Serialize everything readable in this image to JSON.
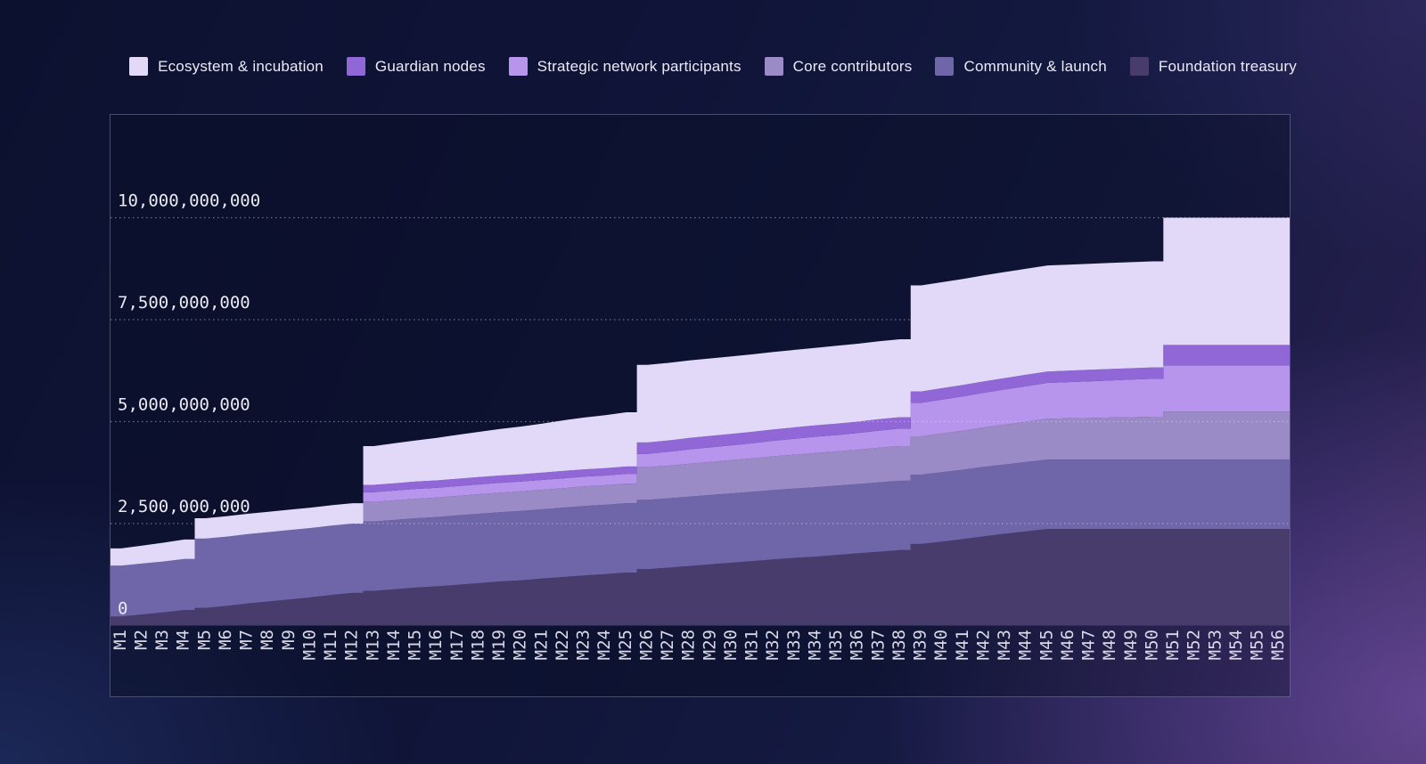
{
  "chart_data": {
    "type": "area",
    "stacked": true,
    "title": "",
    "xlabel": "",
    "ylabel": "",
    "grid": "dotted-horizontal",
    "legend_position": "top-center",
    "values_unit": "billions of tokens",
    "ylim_billions": [
      0,
      12.5
    ],
    "cliff_months": [
      5,
      13,
      26,
      39,
      51
    ],
    "x_categories": [
      "M1",
      "M2",
      "M3",
      "M4",
      "M5",
      "M6",
      "M7",
      "M8",
      "M9",
      "M10",
      "M11",
      "M12",
      "M13",
      "M14",
      "M15",
      "M16",
      "M17",
      "M18",
      "M19",
      "M20",
      "M21",
      "M22",
      "M23",
      "M24",
      "M25",
      "M26",
      "M27",
      "M28",
      "M29",
      "M30",
      "M31",
      "M32",
      "M33",
      "M34",
      "M35",
      "M36",
      "M37",
      "M38",
      "M39",
      "M40",
      "M41",
      "M42",
      "M43",
      "M44",
      "M45",
      "M46",
      "M47",
      "M48",
      "M49",
      "M50",
      "M51",
      "M52",
      "M53",
      "M54",
      "M55",
      "M56"
    ],
    "y_ticks": [
      {
        "value": 0,
        "label": "0",
        "line": false
      },
      {
        "value": 2.5,
        "label": "2,500,000,000",
        "line": true
      },
      {
        "value": 5,
        "label": "5,000,000,000",
        "line": true
      },
      {
        "value": 7.5,
        "label": "7,500,000,000",
        "line": true
      },
      {
        "value": 10,
        "label": "10,000,000,000",
        "line": true
      }
    ],
    "series": [
      {
        "name": "Ecosystem & incubation",
        "color": "#e1d9f7",
        "values": [
          0.42,
          0.44,
          0.46,
          0.48,
          0.5,
          0.5,
          0.5,
          0.5,
          0.5,
          0.5,
          0.5,
          0.5,
          0.95,
          0.98,
          1.01,
          1.04,
          1.08,
          1.11,
          1.14,
          1.17,
          1.2,
          1.24,
          1.27,
          1.3,
          1.33,
          1.9,
          1.9,
          1.9,
          1.9,
          1.9,
          1.9,
          1.9,
          1.9,
          1.9,
          1.91,
          1.91,
          1.91,
          1.91,
          2.6,
          2.6,
          2.6,
          2.6,
          2.6,
          2.6,
          2.6,
          2.6,
          2.6,
          2.6,
          2.6,
          2.6,
          3.12,
          3.12,
          3.12,
          3.12,
          3.12,
          3.12
        ]
      },
      {
        "name": "Guardian nodes",
        "color": "#9166d6",
        "values": [
          0,
          0,
          0,
          0,
          0,
          0,
          0,
          0,
          0,
          0,
          0,
          0,
          0.18,
          0.18,
          0.18,
          0.18,
          0.18,
          0.18,
          0.18,
          0.18,
          0.18,
          0.18,
          0.18,
          0.18,
          0.18,
          0.28,
          0.28,
          0.28,
          0.28,
          0.28,
          0.28,
          0.28,
          0.28,
          0.28,
          0.28,
          0.28,
          0.28,
          0.28,
          0.28,
          0.28,
          0.28,
          0.28,
          0.28,
          0.28,
          0.28,
          0.28,
          0.28,
          0.28,
          0.28,
          0.28,
          0.5,
          0.5,
          0.5,
          0.5,
          0.5,
          0.5
        ]
      },
      {
        "name": "Strategic network participants",
        "color": "#b795ec",
        "values": [
          0,
          0,
          0,
          0,
          0,
          0,
          0,
          0,
          0,
          0,
          0,
          0,
          0.24,
          0.24,
          0.24,
          0.24,
          0.24,
          0.24,
          0.24,
          0.24,
          0.24,
          0.24,
          0.24,
          0.24,
          0.24,
          0.33,
          0.34,
          0.35,
          0.36,
          0.36,
          0.37,
          0.38,
          0.39,
          0.4,
          0.4,
          0.41,
          0.42,
          0.43,
          0.82,
          0.83,
          0.84,
          0.85,
          0.86,
          0.87,
          0.88,
          0.89,
          0.9,
          0.91,
          0.92,
          0.93,
          1.13,
          1.13,
          1.13,
          1.13,
          1.13,
          1.13
        ]
      },
      {
        "name": "Core contributors",
        "color": "#9a8ac6",
        "values": [
          0,
          0,
          0,
          0,
          0,
          0,
          0,
          0,
          0,
          0,
          0,
          0,
          0.48,
          0.48,
          0.48,
          0.48,
          0.48,
          0.48,
          0.48,
          0.48,
          0.48,
          0.48,
          0.48,
          0.48,
          0.48,
          0.8,
          0.8,
          0.81,
          0.81,
          0.82,
          0.82,
          0.83,
          0.83,
          0.84,
          0.84,
          0.84,
          0.85,
          0.85,
          0.94,
          0.95,
          0.96,
          0.97,
          0.98,
          0.99,
          1.0,
          1.01,
          1.02,
          1.03,
          1.04,
          1.05,
          1.18,
          1.18,
          1.18,
          1.18,
          1.18,
          1.18
        ]
      },
      {
        "name": "Community & launch",
        "color": "#6f65a9",
        "values": [
          1.25,
          1.25,
          1.25,
          1.25,
          1.7,
          1.7,
          1.7,
          1.7,
          1.7,
          1.7,
          1.7,
          1.7,
          1.7,
          1.7,
          1.7,
          1.7,
          1.7,
          1.7,
          1.7,
          1.7,
          1.7,
          1.7,
          1.7,
          1.7,
          1.7,
          1.7,
          1.7,
          1.7,
          1.7,
          1.7,
          1.7,
          1.7,
          1.7,
          1.7,
          1.7,
          1.7,
          1.7,
          1.7,
          1.7,
          1.7,
          1.7,
          1.7,
          1.7,
          1.7,
          1.7,
          1.7,
          1.7,
          1.7,
          1.7,
          1.7,
          1.7,
          1.7,
          1.7,
          1.7,
          1.7,
          1.7
        ]
      },
      {
        "name": "Foundation treasury",
        "color": "#473c6b",
        "values": [
          0.22,
          0.27,
          0.32,
          0.38,
          0.43,
          0.48,
          0.54,
          0.59,
          0.64,
          0.69,
          0.75,
          0.8,
          0.85,
          0.89,
          0.93,
          0.96,
          1.0,
          1.04,
          1.08,
          1.11,
          1.15,
          1.19,
          1.23,
          1.26,
          1.3,
          1.38,
          1.42,
          1.46,
          1.5,
          1.54,
          1.58,
          1.62,
          1.66,
          1.69,
          1.73,
          1.77,
          1.81,
          1.85,
          2.0,
          2.06,
          2.12,
          2.19,
          2.25,
          2.31,
          2.37,
          2.37,
          2.37,
          2.37,
          2.37,
          2.37,
          2.37,
          2.37,
          2.37,
          2.37,
          2.37,
          2.37
        ]
      }
    ]
  }
}
